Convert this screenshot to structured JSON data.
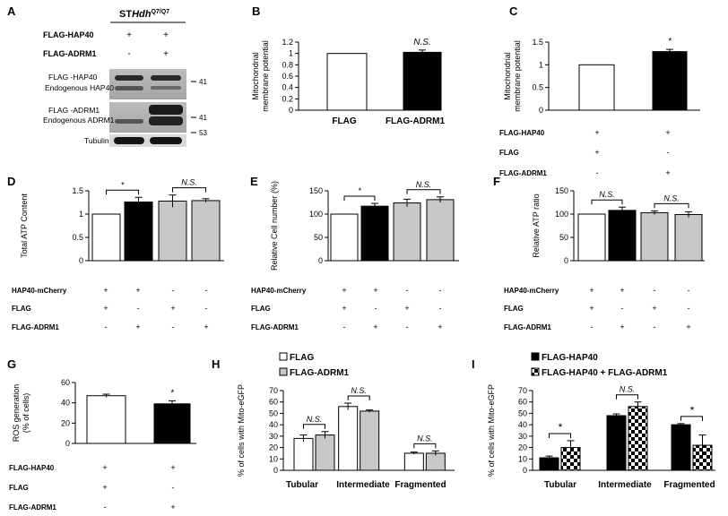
{
  "western_blot": {
    "panel_letter": "A",
    "cell_line_prefix": "ST",
    "cell_line_italic": "Hdh",
    "cell_line_superscript": "Q7/Q7",
    "treatment_rows": [
      {
        "label": "FLAG-HAP40",
        "lane_marks": [
          "+",
          "+"
        ]
      },
      {
        "label": "FLAG-ADRM1",
        "lane_marks": [
          "-",
          "+"
        ]
      }
    ],
    "blots": [
      {
        "labels": [
          "FLAG -HAP40",
          "Endogenous HAP40"
        ],
        "mw": "41"
      },
      {
        "labels": [
          "FLAG -ADRM1",
          "Endogenous ADRM1"
        ],
        "mw": "41"
      },
      {
        "labels": [
          "Tubulin"
        ],
        "mw": "53"
      }
    ]
  },
  "chart_data": [
    {
      "panel": "B",
      "type": "bar",
      "ylabel": "Mitochondrial membrane potential",
      "ylim": [
        0,
        1.2
      ],
      "yticks": [
        0,
        0.2,
        0.4,
        0.6,
        0.8,
        1,
        1.2
      ],
      "categories": [
        "FLAG",
        "FLAG-ADRM1"
      ],
      "values": [
        1.0,
        1.02
      ],
      "errors": [
        0,
        0.04
      ],
      "bar_colors": [
        "#ffffff",
        "#000000"
      ],
      "annotations": [
        {
          "type": "text",
          "bar": 1,
          "text": "N.S."
        }
      ]
    },
    {
      "panel": "C",
      "type": "bar",
      "ylabel": "Mitochondrial membrane potential",
      "ylim": [
        0,
        1.5
      ],
      "yticks": [
        0,
        0.5,
        1,
        1.5
      ],
      "values": [
        1.0,
        1.29
      ],
      "errors": [
        0,
        0.05
      ],
      "bar_colors": [
        "#ffffff",
        "#000000"
      ],
      "annotations": [
        {
          "type": "text",
          "bar": 1,
          "text": "*"
        }
      ],
      "treatments": [
        {
          "label": "FLAG-HAP40",
          "marks": [
            "+",
            "+"
          ]
        },
        {
          "label": "FLAG",
          "marks": [
            "+",
            "-"
          ]
        },
        {
          "label": "FLAG-ADRM1",
          "marks": [
            "-",
            "+"
          ]
        }
      ]
    },
    {
      "panel": "D",
      "type": "bar",
      "ylabel": "Total ATP Content",
      "ylim": [
        0,
        1.5
      ],
      "yticks": [
        0,
        0.5,
        1,
        1.5
      ],
      "values": [
        1.0,
        1.26,
        1.28,
        1.29
      ],
      "errors": [
        0,
        0.1,
        0.13,
        0.04
      ],
      "bar_colors": [
        "#ffffff",
        "#000000",
        "#c8c8c8",
        "#c8c8c8"
      ],
      "annotations": [
        {
          "type": "bracket",
          "from": 0,
          "to": 1,
          "text": "*"
        },
        {
          "type": "bracket",
          "from": 2,
          "to": 3,
          "text": "N.S."
        }
      ],
      "treatments": [
        {
          "label": "HAP40-mCherry",
          "marks": [
            "+",
            "+",
            "-",
            "-"
          ]
        },
        {
          "label": "FLAG",
          "marks": [
            "+",
            "-",
            "+",
            "-"
          ]
        },
        {
          "label": "FLAG-ADRM1",
          "marks": [
            "-",
            "+",
            "-",
            "+"
          ]
        }
      ]
    },
    {
      "panel": "E",
      "type": "bar",
      "ylabel": "Relative Cell number (%)",
      "ylim": [
        0,
        150
      ],
      "yticks": [
        0,
        50,
        100,
        150
      ],
      "values": [
        100,
        117,
        124,
        131
      ],
      "errors": [
        0,
        6,
        8,
        6
      ],
      "bar_colors": [
        "#ffffff",
        "#000000",
        "#c8c8c8",
        "#c8c8c8"
      ],
      "annotations": [
        {
          "type": "bracket",
          "from": 0,
          "to": 1,
          "text": "*"
        },
        {
          "type": "bracket",
          "from": 2,
          "to": 3,
          "text": "N.S."
        }
      ],
      "treatments": [
        {
          "label": "HAP40-mCherry",
          "marks": [
            "+",
            "+",
            "-",
            "-"
          ]
        },
        {
          "label": "FLAG",
          "marks": [
            "+",
            "-",
            "+",
            "-"
          ]
        },
        {
          "label": "FLAG-ADRM1",
          "marks": [
            "-",
            "+",
            "-",
            "+"
          ]
        }
      ]
    },
    {
      "panel": "F",
      "type": "bar",
      "ylabel": "Relative ATP ratio",
      "ylim": [
        0,
        150
      ],
      "yticks": [
        0,
        50,
        100,
        150
      ],
      "values": [
        100,
        108,
        103,
        99
      ],
      "errors": [
        0,
        7,
        4,
        6
      ],
      "bar_colors": [
        "#ffffff",
        "#000000",
        "#c8c8c8",
        "#c8c8c8"
      ],
      "annotations": [
        {
          "type": "bracket",
          "from": 0,
          "to": 1,
          "text": "N.S."
        },
        {
          "type": "bracket",
          "from": 2,
          "to": 3,
          "text": "N.S."
        }
      ],
      "treatments": [
        {
          "label": "HAP40-mCherry",
          "marks": [
            "+",
            "+",
            "-",
            "-"
          ]
        },
        {
          "label": "FLAG",
          "marks": [
            "+",
            "-",
            "+",
            "-"
          ]
        },
        {
          "label": "FLAG-ADRM1",
          "marks": [
            "-",
            "+",
            "-",
            "+"
          ]
        }
      ]
    },
    {
      "panel": "G",
      "type": "bar",
      "ylabel": "ROS generation (% of cells)",
      "ylim": [
        0,
        60
      ],
      "yticks": [
        0,
        20,
        40,
        60
      ],
      "values": [
        47,
        39
      ],
      "errors": [
        1.5,
        3
      ],
      "bar_colors": [
        "#ffffff",
        "#000000"
      ],
      "annotations": [
        {
          "type": "text",
          "bar": 1,
          "text": "*"
        }
      ],
      "treatments": [
        {
          "label": "FLAG-HAP40",
          "marks": [
            "+",
            "+"
          ]
        },
        {
          "label": "FLAG",
          "marks": [
            "+",
            "-"
          ]
        },
        {
          "label": "FLAG-ADRM1",
          "marks": [
            "-",
            "+"
          ]
        }
      ]
    },
    {
      "panel": "H",
      "type": "grouped_bar",
      "ylabel": "% of cells with Mito-eGFP",
      "ylim": [
        0,
        70
      ],
      "yticks": [
        0,
        10,
        20,
        30,
        40,
        50,
        60,
        70
      ],
      "categories": [
        "Tubular",
        "Intermediate",
        "Fragmented"
      ],
      "series": [
        {
          "name": "FLAG",
          "color": "#ffffff",
          "values": [
            28,
            56,
            15
          ],
          "errors": [
            3,
            3,
            1
          ]
        },
        {
          "name": "FLAG-ADRM1",
          "color": "#c8c8c8",
          "values": [
            31,
            52,
            15
          ],
          "errors": [
            3,
            1,
            2
          ]
        }
      ],
      "annotations": [
        {
          "type": "bracket",
          "group": 0,
          "text": "N.S."
        },
        {
          "type": "bracket",
          "group": 1,
          "text": "N.S."
        },
        {
          "type": "bracket",
          "group": 2,
          "text": "N.S."
        }
      ]
    },
    {
      "panel": "I",
      "type": "grouped_bar",
      "ylabel": "% of cells with Mito-eGFP",
      "ylim": [
        0,
        70
      ],
      "yticks": [
        0,
        10,
        20,
        30,
        40,
        50,
        60,
        70
      ],
      "categories": [
        "Tubular",
        "Intermediate",
        "Fragmented"
      ],
      "series": [
        {
          "name": "FLAG-HAP40",
          "color": "#000000",
          "values": [
            11,
            48,
            40
          ],
          "errors": [
            1.5,
            1.5,
            1
          ]
        },
        {
          "name": "FLAG-HAP40 + FLAG-ADRM1",
          "color": "#ffffff",
          "pattern": "checker",
          "values": [
            20,
            56,
            22
          ],
          "errors": [
            6,
            4,
            9
          ]
        }
      ],
      "annotations": [
        {
          "type": "bracket",
          "group": 0,
          "text": "*"
        },
        {
          "type": "bracket",
          "group": 1,
          "text": "N.S."
        },
        {
          "type": "bracket",
          "group": 2,
          "text": "*"
        }
      ]
    }
  ]
}
